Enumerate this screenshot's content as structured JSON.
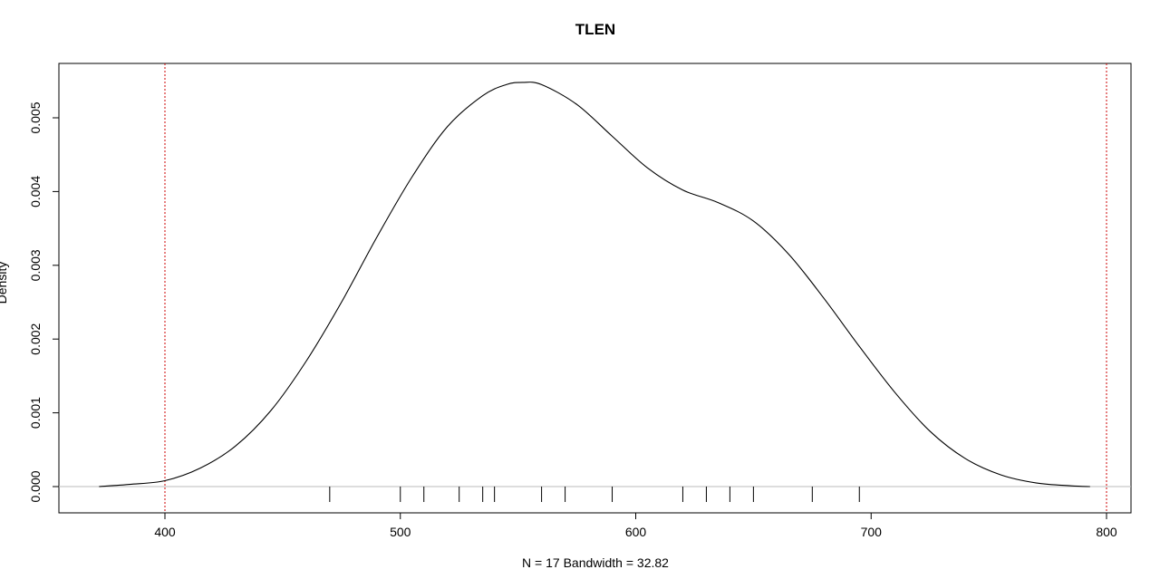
{
  "chart_data": {
    "type": "line",
    "title": "TLEN",
    "xlabel": "N = 17   Bandwidth = 32.82",
    "ylabel": "Density",
    "xlim": [
      355,
      1250
    ],
    "ylim": [
      -0.00027,
      0.00575
    ],
    "x_ticks": [
      400,
      500,
      600,
      700,
      800
    ],
    "x_tick_labels": [
      "400",
      "500",
      "600",
      "700",
      "800"
    ],
    "y_ticks": [
      0.0,
      0.001,
      0.002,
      0.003,
      0.004,
      0.005
    ],
    "y_tick_labels": [
      "0.000",
      "0.001",
      "0.002",
      "0.003",
      "0.004",
      "0.005"
    ],
    "grid": false,
    "baseline": 0,
    "reference_lines": [
      400,
      800
    ],
    "reference_line_color": "#cc0000",
    "line_color": "#000000",
    "baseline_color": "#bbbbbb",
    "series": [
      {
        "x": [
          372,
          385,
          400,
          415,
          430,
          445,
          460,
          475,
          490,
          505,
          520,
          535,
          545,
          552,
          560,
          575,
          590,
          605,
          620,
          635,
          650,
          665,
          680,
          695,
          710,
          725,
          740,
          755,
          770,
          785,
          793
        ],
        "y": [
          0.0,
          3e-05,
          8e-05,
          0.00025,
          0.00055,
          0.00103,
          0.0017,
          0.0025,
          0.00338,
          0.0042,
          0.00488,
          0.0053,
          0.00545,
          0.00548,
          0.00545,
          0.00518,
          0.00475,
          0.00432,
          0.00402,
          0.00385,
          0.0036,
          0.00315,
          0.00255,
          0.0019,
          0.00128,
          0.00075,
          0.00038,
          0.00016,
          5e-05,
          1e-05,
          0.0
        ]
      }
    ],
    "rug": [
      470,
      500,
      510,
      525,
      535,
      540,
      560,
      570,
      590,
      620,
      630,
      640,
      650,
      675,
      695
    ]
  }
}
